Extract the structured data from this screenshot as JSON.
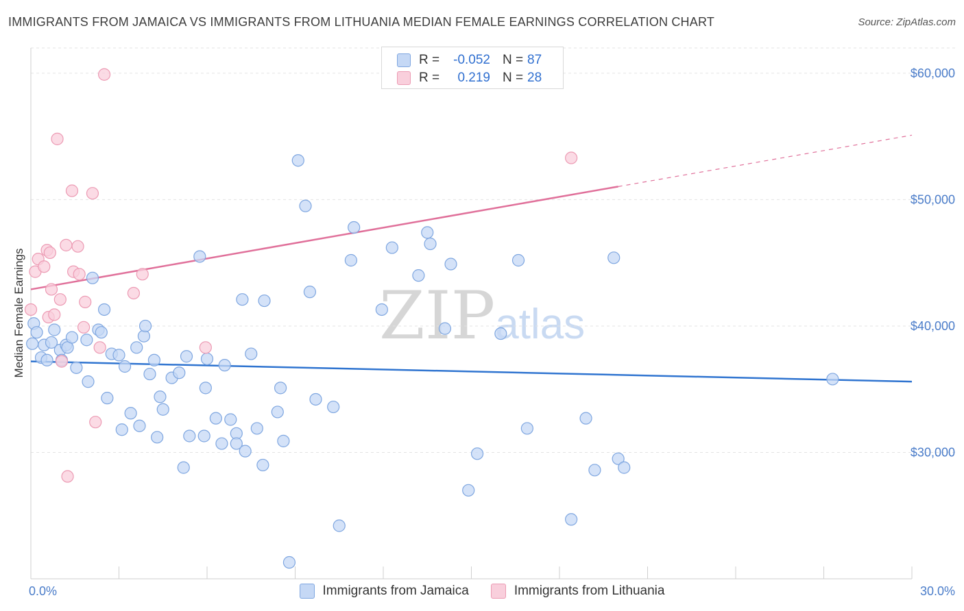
{
  "title": "IMMIGRANTS FROM JAMAICA VS IMMIGRANTS FROM LITHUANIA MEDIAN FEMALE EARNINGS CORRELATION CHART",
  "source": "Source: ZipAtlas.com",
  "watermark": {
    "zip": "ZIP",
    "atlas": "atlas"
  },
  "legend": {
    "rows": [
      {
        "r_label": "R =",
        "r_value": "-0.052",
        "n_label": "N =",
        "n_value": "87"
      },
      {
        "r_label": "R =",
        "r_value": "0.219",
        "n_label": "N =",
        "n_value": "28"
      }
    ]
  },
  "colors": {
    "jamaica_fill": "#c5d8f5",
    "jamaica_stroke": "#7ea6e0",
    "jamaica_line": "#2f74d0",
    "lithuania_fill": "#f9cfdc",
    "lithuania_stroke": "#ec9ab3",
    "lithuania_line": "#e0709a",
    "grid": "#e3e3e3",
    "tick_text": "#4a7cc9"
  },
  "chart_data": {
    "type": "scatter",
    "title": "IMMIGRANTS FROM JAMAICA VS IMMIGRANTS FROM LITHUANIA MEDIAN FEMALE EARNINGS CORRELATION CHART",
    "xlabel": "",
    "ylabel": "Median Female Earnings",
    "xlim": [
      0,
      30
    ],
    "ylim": [
      20000,
      62000
    ],
    "x_tick_labels": [
      {
        "x": 0,
        "label": "0.0%"
      },
      {
        "x": 30,
        "label": "30.0%"
      }
    ],
    "y_ticks": [
      {
        "y": 30000,
        "label": "$30,000"
      },
      {
        "y": 40000,
        "label": "$40,000"
      },
      {
        "y": 50000,
        "label": "$50,000"
      },
      {
        "y": 60000,
        "label": "$60,000"
      }
    ],
    "grid": true,
    "legend_position": "top-center",
    "series": [
      {
        "name": "Immigrants from Jamaica",
        "color": "#7ea6e0",
        "r": -0.052,
        "n": 87,
        "trend": {
          "x0": 0.0,
          "y0": 37200,
          "x1": 30.0,
          "y1": 35600,
          "solid_to": 30.0
        },
        "points": [
          [
            0.05,
            38600
          ],
          [
            0.1,
            40200
          ],
          [
            0.2,
            39500
          ],
          [
            0.35,
            37500
          ],
          [
            0.45,
            38500
          ],
          [
            0.55,
            37300
          ],
          [
            0.7,
            38700
          ],
          [
            0.8,
            39700
          ],
          [
            1.0,
            38100
          ],
          [
            1.05,
            37300
          ],
          [
            1.2,
            38500
          ],
          [
            1.25,
            38300
          ],
          [
            1.4,
            39100
          ],
          [
            1.55,
            36700
          ],
          [
            1.9,
            38900
          ],
          [
            1.95,
            35600
          ],
          [
            2.1,
            43800
          ],
          [
            2.3,
            39700
          ],
          [
            2.4,
            39500
          ],
          [
            2.5,
            41300
          ],
          [
            2.6,
            34300
          ],
          [
            2.75,
            37800
          ],
          [
            3.0,
            37700
          ],
          [
            3.1,
            31800
          ],
          [
            3.2,
            36800
          ],
          [
            3.4,
            33100
          ],
          [
            3.6,
            38300
          ],
          [
            3.7,
            32100
          ],
          [
            3.85,
            39200
          ],
          [
            3.9,
            40000
          ],
          [
            4.05,
            36200
          ],
          [
            4.2,
            37300
          ],
          [
            4.3,
            31200
          ],
          [
            4.4,
            34400
          ],
          [
            4.5,
            33400
          ],
          [
            4.8,
            35900
          ],
          [
            5.05,
            36300
          ],
          [
            5.2,
            28800
          ],
          [
            5.3,
            37600
          ],
          [
            5.4,
            31300
          ],
          [
            5.75,
            45500
          ],
          [
            5.9,
            31300
          ],
          [
            5.95,
            35100
          ],
          [
            6.0,
            37400
          ],
          [
            6.3,
            32700
          ],
          [
            6.5,
            30700
          ],
          [
            6.6,
            36900
          ],
          [
            6.8,
            32600
          ],
          [
            7.0,
            31500
          ],
          [
            7.0,
            30700
          ],
          [
            7.2,
            42100
          ],
          [
            7.3,
            30100
          ],
          [
            7.5,
            37800
          ],
          [
            7.7,
            31900
          ],
          [
            7.9,
            29000
          ],
          [
            7.95,
            42000
          ],
          [
            8.4,
            33200
          ],
          [
            8.5,
            35100
          ],
          [
            8.6,
            30900
          ],
          [
            8.8,
            21300
          ],
          [
            9.1,
            53100
          ],
          [
            9.35,
            49500
          ],
          [
            9.5,
            42700
          ],
          [
            9.7,
            34200
          ],
          [
            10.3,
            33600
          ],
          [
            10.5,
            24200
          ],
          [
            10.9,
            45200
          ],
          [
            11.0,
            47800
          ],
          [
            11.95,
            41300
          ],
          [
            12.3,
            46200
          ],
          [
            13.2,
            44000
          ],
          [
            13.5,
            47400
          ],
          [
            13.6,
            46500
          ],
          [
            14.1,
            39800
          ],
          [
            14.3,
            44900
          ],
          [
            14.9,
            27000
          ],
          [
            15.2,
            29900
          ],
          [
            16.0,
            39400
          ],
          [
            16.6,
            45200
          ],
          [
            16.9,
            31900
          ],
          [
            18.4,
            24700
          ],
          [
            18.9,
            32700
          ],
          [
            19.2,
            28600
          ],
          [
            19.85,
            45400
          ],
          [
            20.0,
            29500
          ],
          [
            20.2,
            28800
          ],
          [
            27.3,
            35800
          ]
        ]
      },
      {
        "name": "Immigrants from Lithuania",
        "color": "#ec9ab3",
        "r": 0.219,
        "n": 28,
        "trend": {
          "x0": 0.0,
          "y0": 42900,
          "x1": 30.0,
          "y1": 55100,
          "solid_to": 20.0
        },
        "points": [
          [
            0.0,
            41300
          ],
          [
            0.15,
            44300
          ],
          [
            0.25,
            45300
          ],
          [
            0.45,
            44700
          ],
          [
            0.55,
            46000
          ],
          [
            0.6,
            40700
          ],
          [
            0.65,
            45800
          ],
          [
            0.7,
            42900
          ],
          [
            0.8,
            40900
          ],
          [
            0.9,
            54800
          ],
          [
            1.0,
            42100
          ],
          [
            1.05,
            37200
          ],
          [
            1.2,
            46400
          ],
          [
            1.25,
            28100
          ],
          [
            1.4,
            50700
          ],
          [
            1.45,
            44300
          ],
          [
            1.6,
            46300
          ],
          [
            1.65,
            44100
          ],
          [
            1.8,
            39900
          ],
          [
            1.85,
            41900
          ],
          [
            2.1,
            50500
          ],
          [
            2.2,
            32400
          ],
          [
            2.35,
            38300
          ],
          [
            2.5,
            59900
          ],
          [
            3.5,
            42600
          ],
          [
            3.8,
            44100
          ],
          [
            5.95,
            38300
          ],
          [
            18.4,
            53300
          ]
        ]
      }
    ]
  }
}
